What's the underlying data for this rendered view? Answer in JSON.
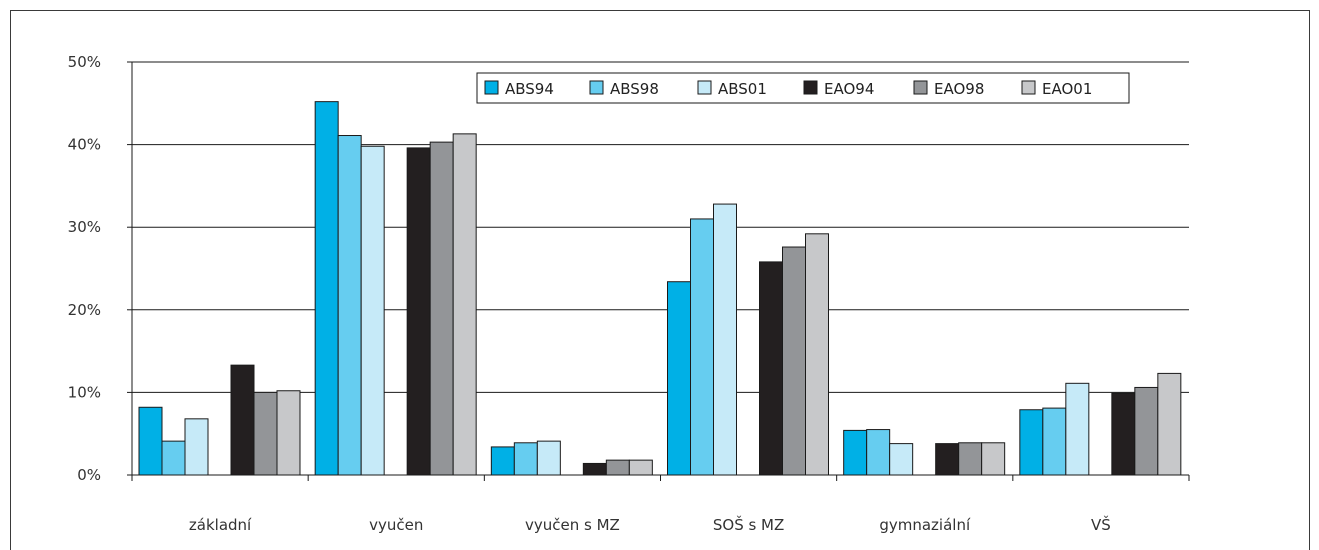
{
  "chart_data": {
    "type": "bar",
    "categories": [
      "základní",
      "vyučen",
      "vyučen s MZ",
      "SOŠ s MZ",
      "gymnaziální",
      "VŠ"
    ],
    "series": [
      {
        "name": "ABS94",
        "color": "#00b0e6",
        "values": [
          8.2,
          45.2,
          3.4,
          23.4,
          5.4,
          7.9
        ]
      },
      {
        "name": "ABS98",
        "color": "#66cdf0",
        "values": [
          4.1,
          41.1,
          3.9,
          31.0,
          5.5,
          8.1
        ]
      },
      {
        "name": "ABS01",
        "color": "#c6eaf8",
        "values": [
          6.8,
          39.8,
          4.1,
          32.8,
          3.8,
          11.1
        ]
      },
      {
        "name": "EAO94",
        "color": "#231f20",
        "values": [
          13.3,
          39.6,
          1.4,
          25.8,
          3.8,
          9.9
        ]
      },
      {
        "name": "EAO98",
        "color": "#939598",
        "values": [
          10.0,
          40.3,
          1.8,
          27.6,
          3.9,
          10.6
        ]
      },
      {
        "name": "EAO01",
        "color": "#c7c8ca",
        "values": [
          10.2,
          41.3,
          1.8,
          29.2,
          3.9,
          12.3
        ]
      }
    ],
    "y_ticks": [
      "0%",
      "10%",
      "20%",
      "30%",
      "40%",
      "50%"
    ],
    "ylim": [
      0,
      50
    ],
    "grid": true,
    "legend_position": "top-right"
  }
}
